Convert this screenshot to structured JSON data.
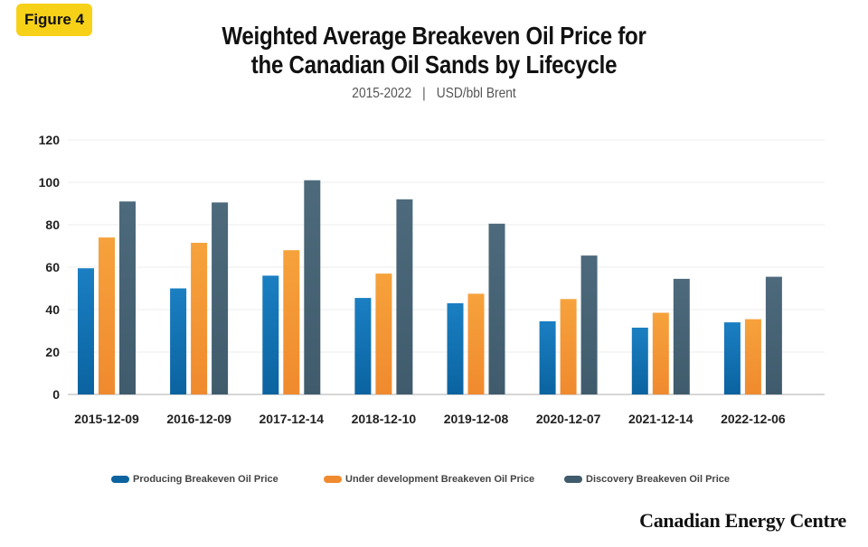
{
  "badge": "Figure 4",
  "title_line1": "Weighted Average Breakeven Oil Price for",
  "title_line2": "the Canadian Oil Sands by Lifecycle",
  "subtitle_period": "2015-2022",
  "subtitle_separator": "|",
  "subtitle_unit": "USD/bbl Brent",
  "brand": "Canadian Energy Centre",
  "chart_data": {
    "type": "bar",
    "categories": [
      "2015-12-09",
      "2016-12-09",
      "2017-12-14",
      "2018-12-10",
      "2019-12-08",
      "2020-12-07",
      "2021-12-14",
      "2022-12-06"
    ],
    "series": [
      {
        "name": "Producing Breakeven Oil Price",
        "color": "#0b63a0",
        "values": [
          59.5,
          50,
          56,
          45.5,
          43,
          34.5,
          31.5,
          34
        ]
      },
      {
        "name": "Under development Breakeven Oil Price",
        "color": "#f08a2e",
        "values": [
          74,
          71.5,
          68,
          57,
          47.5,
          45,
          38.5,
          35.5
        ]
      },
      {
        "name": "Discovery Breakeven Oil Price",
        "color": "#3f5b6c",
        "values": [
          91,
          90.5,
          101,
          92,
          80.5,
          65.5,
          54.5,
          55.5
        ]
      }
    ],
    "yticks": [
      "0",
      "20",
      "40",
      "60",
      "80",
      "100",
      "120"
    ],
    "ylim": [
      0,
      120
    ],
    "grid": true,
    "legend_position": "bottom"
  }
}
